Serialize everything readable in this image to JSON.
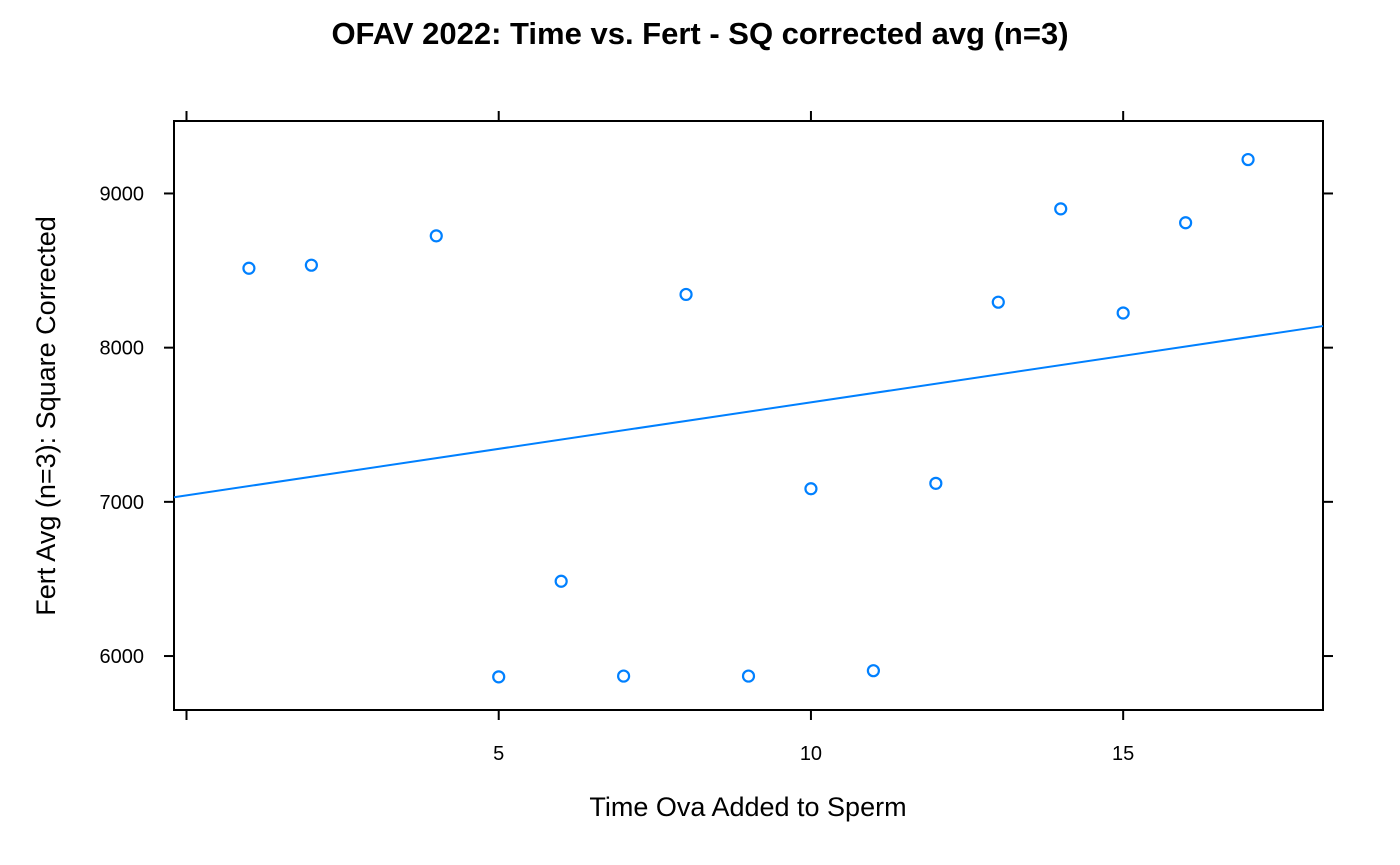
{
  "chart_data": {
    "type": "scatter",
    "title": "OFAV 2022: Time vs. Fert - SQ corrected avg (n=3)",
    "xlabel": "Time Ova Added to Sperm",
    "ylabel": "Fert Avg (n=3): Square Corrected",
    "xlim": [
      -0.2,
      18.2
    ],
    "ylim": [
      5650,
      9470
    ],
    "x_ticks": [
      5,
      10,
      15
    ],
    "x_tick_marks": [
      0,
      5,
      10,
      15
    ],
    "y_ticks": [
      6000,
      7000,
      8000,
      9000
    ],
    "grid": false,
    "series": [
      {
        "color": "#0080ff",
        "points": [
          {
            "x": 1,
            "y": 8515
          },
          {
            "x": 2,
            "y": 8535
          },
          {
            "x": 4,
            "y": 8725
          },
          {
            "x": 5,
            "y": 5865
          },
          {
            "x": 6,
            "y": 6485
          },
          {
            "x": 7,
            "y": 5870
          },
          {
            "x": 8,
            "y": 8345
          },
          {
            "x": 9,
            "y": 5870
          },
          {
            "x": 10,
            "y": 7085
          },
          {
            "x": 11,
            "y": 5905
          },
          {
            "x": 12,
            "y": 7120
          },
          {
            "x": 13,
            "y": 8295
          },
          {
            "x": 14,
            "y": 8900
          },
          {
            "x": 15,
            "y": 8225
          },
          {
            "x": 16,
            "y": 8810
          },
          {
            "x": 17,
            "y": 9220
          }
        ]
      }
    ],
    "regression_line": {
      "color": "#0080ff",
      "x": [
        -0.2,
        18.2
      ],
      "y": [
        7030,
        8140
      ]
    }
  }
}
